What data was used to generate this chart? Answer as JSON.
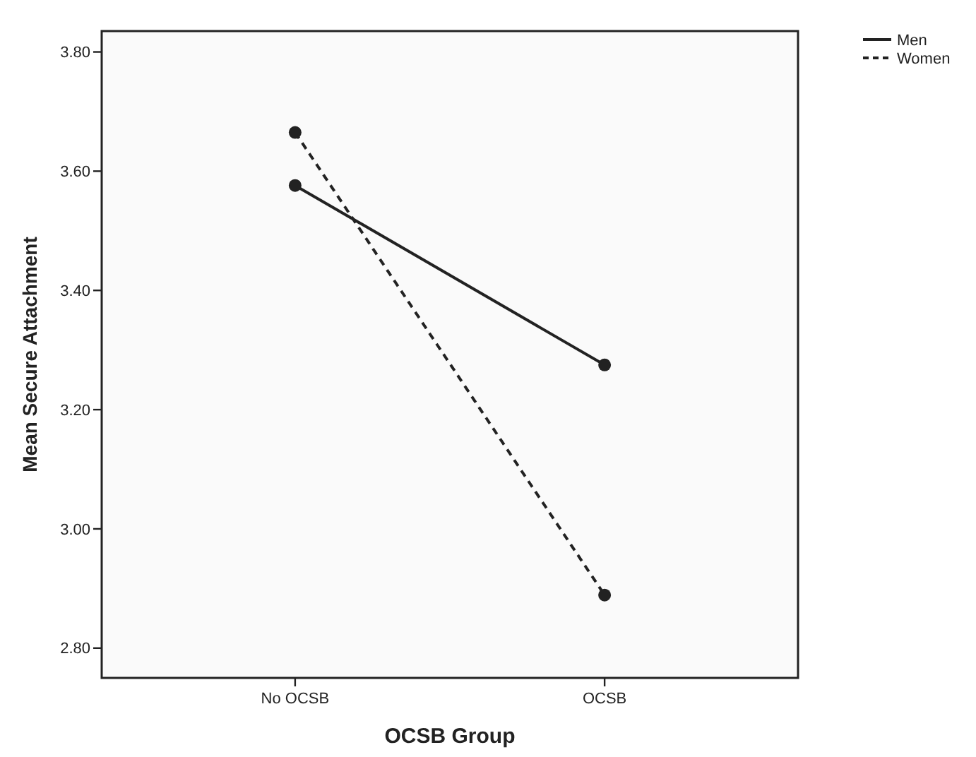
{
  "chart_data": {
    "type": "line",
    "xlabel": "OCSB Group",
    "ylabel": "Mean Secure Attachment",
    "categories": [
      "No OCSB",
      "OCSB"
    ],
    "series": [
      {
        "name": "Men",
        "color": "#222222",
        "values": [
          3.576,
          3.275
        ],
        "line_style": "solid"
      },
      {
        "name": "Women",
        "color": "#222222",
        "values": [
          3.665,
          2.889
        ],
        "line_style": "dashed"
      }
    ],
    "ylim": [
      2.75,
      3.835
    ],
    "yticks": [
      {
        "value": 2.8,
        "label": "2.80"
      },
      {
        "value": 3.0,
        "label": "3.00"
      },
      {
        "value": 3.2,
        "label": "3.20"
      },
      {
        "value": 3.4,
        "label": "3.40"
      },
      {
        "value": 3.6,
        "label": "3.60"
      },
      {
        "value": 3.8,
        "label": "3.80"
      }
    ],
    "marker": "circle",
    "grid": false,
    "legend": "top right"
  }
}
